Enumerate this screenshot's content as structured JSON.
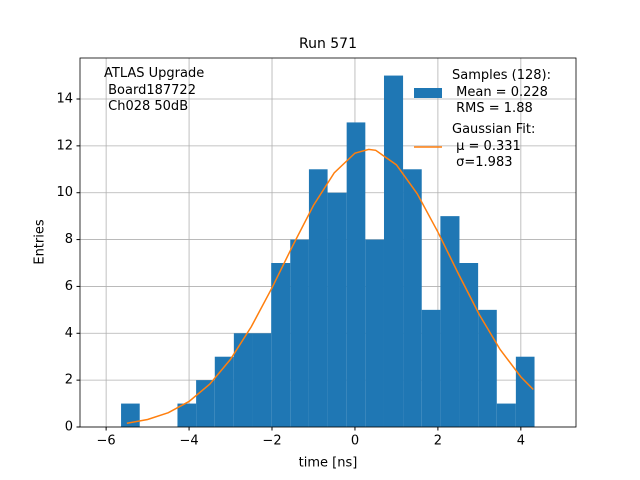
{
  "chart_data": {
    "type": "histogram",
    "title": "Run 571",
    "xlabel": "time [ns]",
    "ylabel": "Entries",
    "annotation": "ATLAS Upgrade\n Board187722\n Ch028 50dB",
    "xlim": [
      -6.63,
      5.33
    ],
    "ylim": [
      0,
      15.75
    ],
    "xticks": [
      {
        "value": -6,
        "label": "−6"
      },
      {
        "value": -4,
        "label": "−4"
      },
      {
        "value": -2,
        "label": "−2"
      },
      0,
      2,
      4
    ],
    "yticks": [
      0,
      2,
      4,
      6,
      8,
      10,
      12,
      14
    ],
    "grid": true,
    "legend": "upper right",
    "series": [
      {
        "name": "Samples (128):\n Mean = 0.228\n RMS = 1.88",
        "color": "#1f77b4",
        "type": "histogram",
        "bins": [
          -5.64,
          -5.19,
          -4.73,
          -4.28,
          -3.83,
          -3.38,
          -2.92,
          -2.47,
          -2.02,
          -1.56,
          -1.11,
          -0.66,
          -0.2,
          0.25,
          0.7,
          1.16,
          1.61,
          2.06,
          2.52,
          2.97,
          3.42,
          3.88,
          4.33
        ],
        "values": [
          1,
          0,
          0,
          1,
          2,
          3,
          4,
          4,
          7,
          8,
          11,
          10,
          13,
          8,
          15,
          11,
          5,
          9,
          7,
          5,
          1,
          3
        ]
      },
      {
        "name": "Gaussian Fit:\n μ = 0.331\n σ=1.983",
        "color": "#ff7f0e",
        "type": "line",
        "x": [
          -5.5,
          -5,
          -4.5,
          -4,
          -3.5,
          -3,
          -2.5,
          -2,
          -1.5,
          -1,
          -0.5,
          0,
          0.331,
          0.5,
          1,
          1.5,
          2,
          2.5,
          3,
          3.5,
          4,
          4.3
        ],
        "values": [
          0.16,
          0.32,
          0.61,
          1.09,
          1.83,
          2.89,
          4.28,
          5.94,
          7.74,
          9.46,
          10.85,
          11.69,
          11.85,
          11.81,
          11.19,
          9.96,
          8.32,
          6.52,
          4.79,
          3.31,
          2.14,
          1.6
        ]
      }
    ]
  }
}
